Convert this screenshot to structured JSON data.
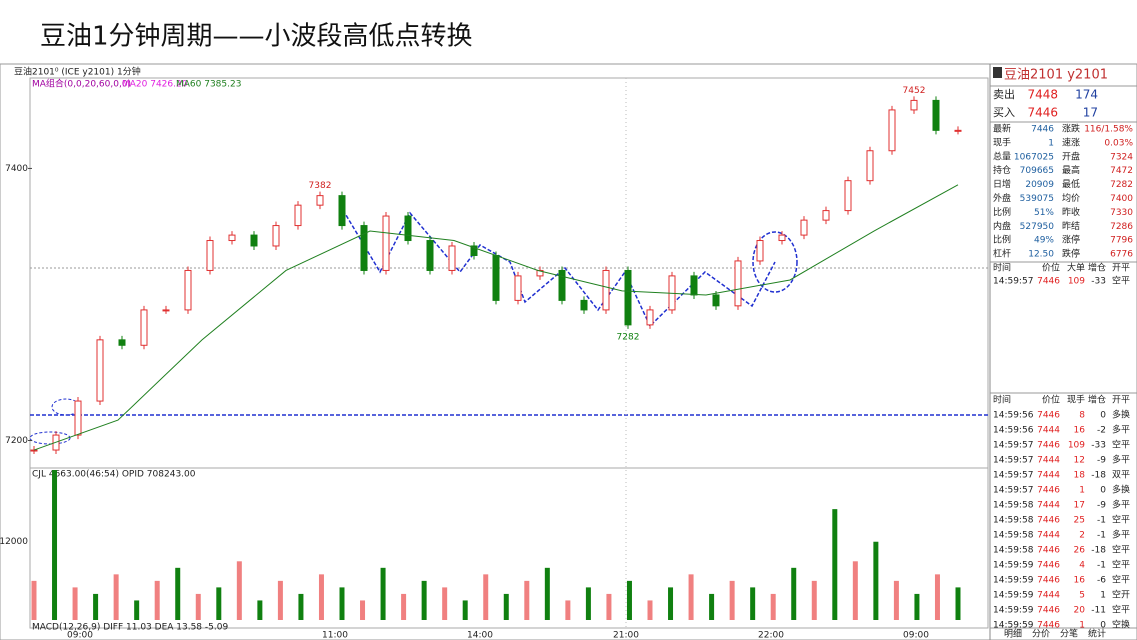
{
  "title": "豆油1分钟周期——小波段高低点转换",
  "chart": {
    "header": "豆油2101⁰ (ICE y2101) 1分钟",
    "ma_group": "MA组合(0,0,20,60,0,0)",
    "ma20": "MA20 7426.20",
    "ma60": "MA60 7385.23",
    "ylim": [
      7182,
      7465
    ],
    "yticks": [
      7400,
      7200
    ],
    "price": [
      7193,
      7204,
      7229,
      7274,
      7270,
      7296,
      7296,
      7325,
      7347,
      7351,
      7343,
      7358,
      7373,
      7380,
      7358,
      7325,
      7365,
      7347,
      7325,
      7343,
      7336,
      7303,
      7321,
      7325,
      7303,
      7296,
      7325,
      7285,
      7296,
      7321,
      7307,
      7299,
      7332,
      7347,
      7351,
      7362,
      7369,
      7391,
      7413,
      7443,
      7450,
      7428,
      7428
    ],
    "ma60_line": [
      7193,
      7215,
      7274,
      7325,
      7354,
      7347,
      7325,
      7310,
      7307,
      7318,
      7354,
      7388
    ],
    "annotations": [
      "7382",
      "7282",
      "7452"
    ],
    "times": [
      "09:00",
      "11:00",
      "14:00",
      "21:00",
      "22:00",
      "09:00"
    ],
    "volume_header": "CJL 4663.00(46:54) OPID 708243.00",
    "volume_ylim": [
      0,
      23000
    ],
    "volume_yticks": [
      12000
    ],
    "volume": [
      6000,
      23000,
      5000,
      4000,
      7000,
      3000,
      6000,
      8000,
      4000,
      5000,
      9000,
      3000,
      6000,
      4000,
      7000,
      5000,
      3000,
      8000,
      4000,
      6000,
      5000,
      3000,
      7000,
      4000,
      6000,
      8000,
      3000,
      5000,
      4000,
      6000,
      3000,
      5000,
      7000,
      4000,
      6000,
      5000,
      4000,
      8000,
      6000,
      17000,
      9000,
      12000,
      6000,
      4000,
      7000,
      5000
    ],
    "macd": "MACD(12,26,9) DIFF 11.03 DEA 13.58 -5.09"
  },
  "panel": {
    "name": "豆油2101  y2101",
    "sell": [
      "卖出",
      "7448",
      "174"
    ],
    "buy": [
      "买入",
      "7446",
      "17"
    ],
    "quote": [
      [
        "最新",
        "7446",
        "涨跌",
        "116/1.58%"
      ],
      [
        "现手",
        "1",
        "速涨",
        "0.03%"
      ],
      [
        "总量",
        "1067025",
        "开盘",
        "7324"
      ],
      [
        "持仓",
        "709665",
        "最高",
        "7472"
      ],
      [
        "日增",
        "20909",
        "最低",
        "7282"
      ],
      [
        "外盘",
        "539075",
        "均价",
        "7400"
      ],
      [
        "比例",
        "51%",
        "昨收",
        "7330"
      ],
      [
        "内盘",
        "527950",
        "昨结",
        "7286"
      ],
      [
        "比例",
        "49%",
        "涨停",
        "7796"
      ],
      [
        "杠杆",
        "12.50",
        "跌停",
        "6776"
      ]
    ],
    "big_header": [
      "时间",
      "价位",
      "大单",
      "增仓",
      "开平"
    ],
    "big_rows": [
      [
        "14:59:57",
        "7446",
        "109",
        "-33",
        "空平"
      ]
    ],
    "tick_header": [
      "时间",
      "价位",
      "现手",
      "增仓",
      "开平"
    ],
    "ticks": [
      [
        "14:59:56",
        "7446",
        "8",
        "0",
        "多换"
      ],
      [
        "14:59:56",
        "7444",
        "16",
        "-2",
        "多平"
      ],
      [
        "14:59:57",
        "7446",
        "109",
        "-33",
        "空平"
      ],
      [
        "14:59:57",
        "7444",
        "12",
        "-9",
        "多平"
      ],
      [
        "14:59:57",
        "7444",
        "18",
        "-18",
        "双平"
      ],
      [
        "14:59:57",
        "7446",
        "1",
        "0",
        "多换"
      ],
      [
        "14:59:58",
        "7444",
        "17",
        "-9",
        "多平"
      ],
      [
        "14:59:58",
        "7446",
        "25",
        "-1",
        "空平"
      ],
      [
        "14:59:58",
        "7444",
        "2",
        "-1",
        "多平"
      ],
      [
        "14:59:58",
        "7446",
        "26",
        "-18",
        "空平"
      ],
      [
        "14:59:59",
        "7446",
        "4",
        "-1",
        "空平"
      ],
      [
        "14:59:59",
        "7446",
        "16",
        "-6",
        "空平"
      ],
      [
        "14:59:59",
        "7444",
        "5",
        "1",
        "空开"
      ],
      [
        "14:59:59",
        "7446",
        "20",
        "-11",
        "空平"
      ],
      [
        "14:59:59",
        "7446",
        "1",
        "0",
        "空换"
      ]
    ],
    "tabs": [
      "明细",
      "分价",
      "分笔",
      "统计"
    ]
  }
}
